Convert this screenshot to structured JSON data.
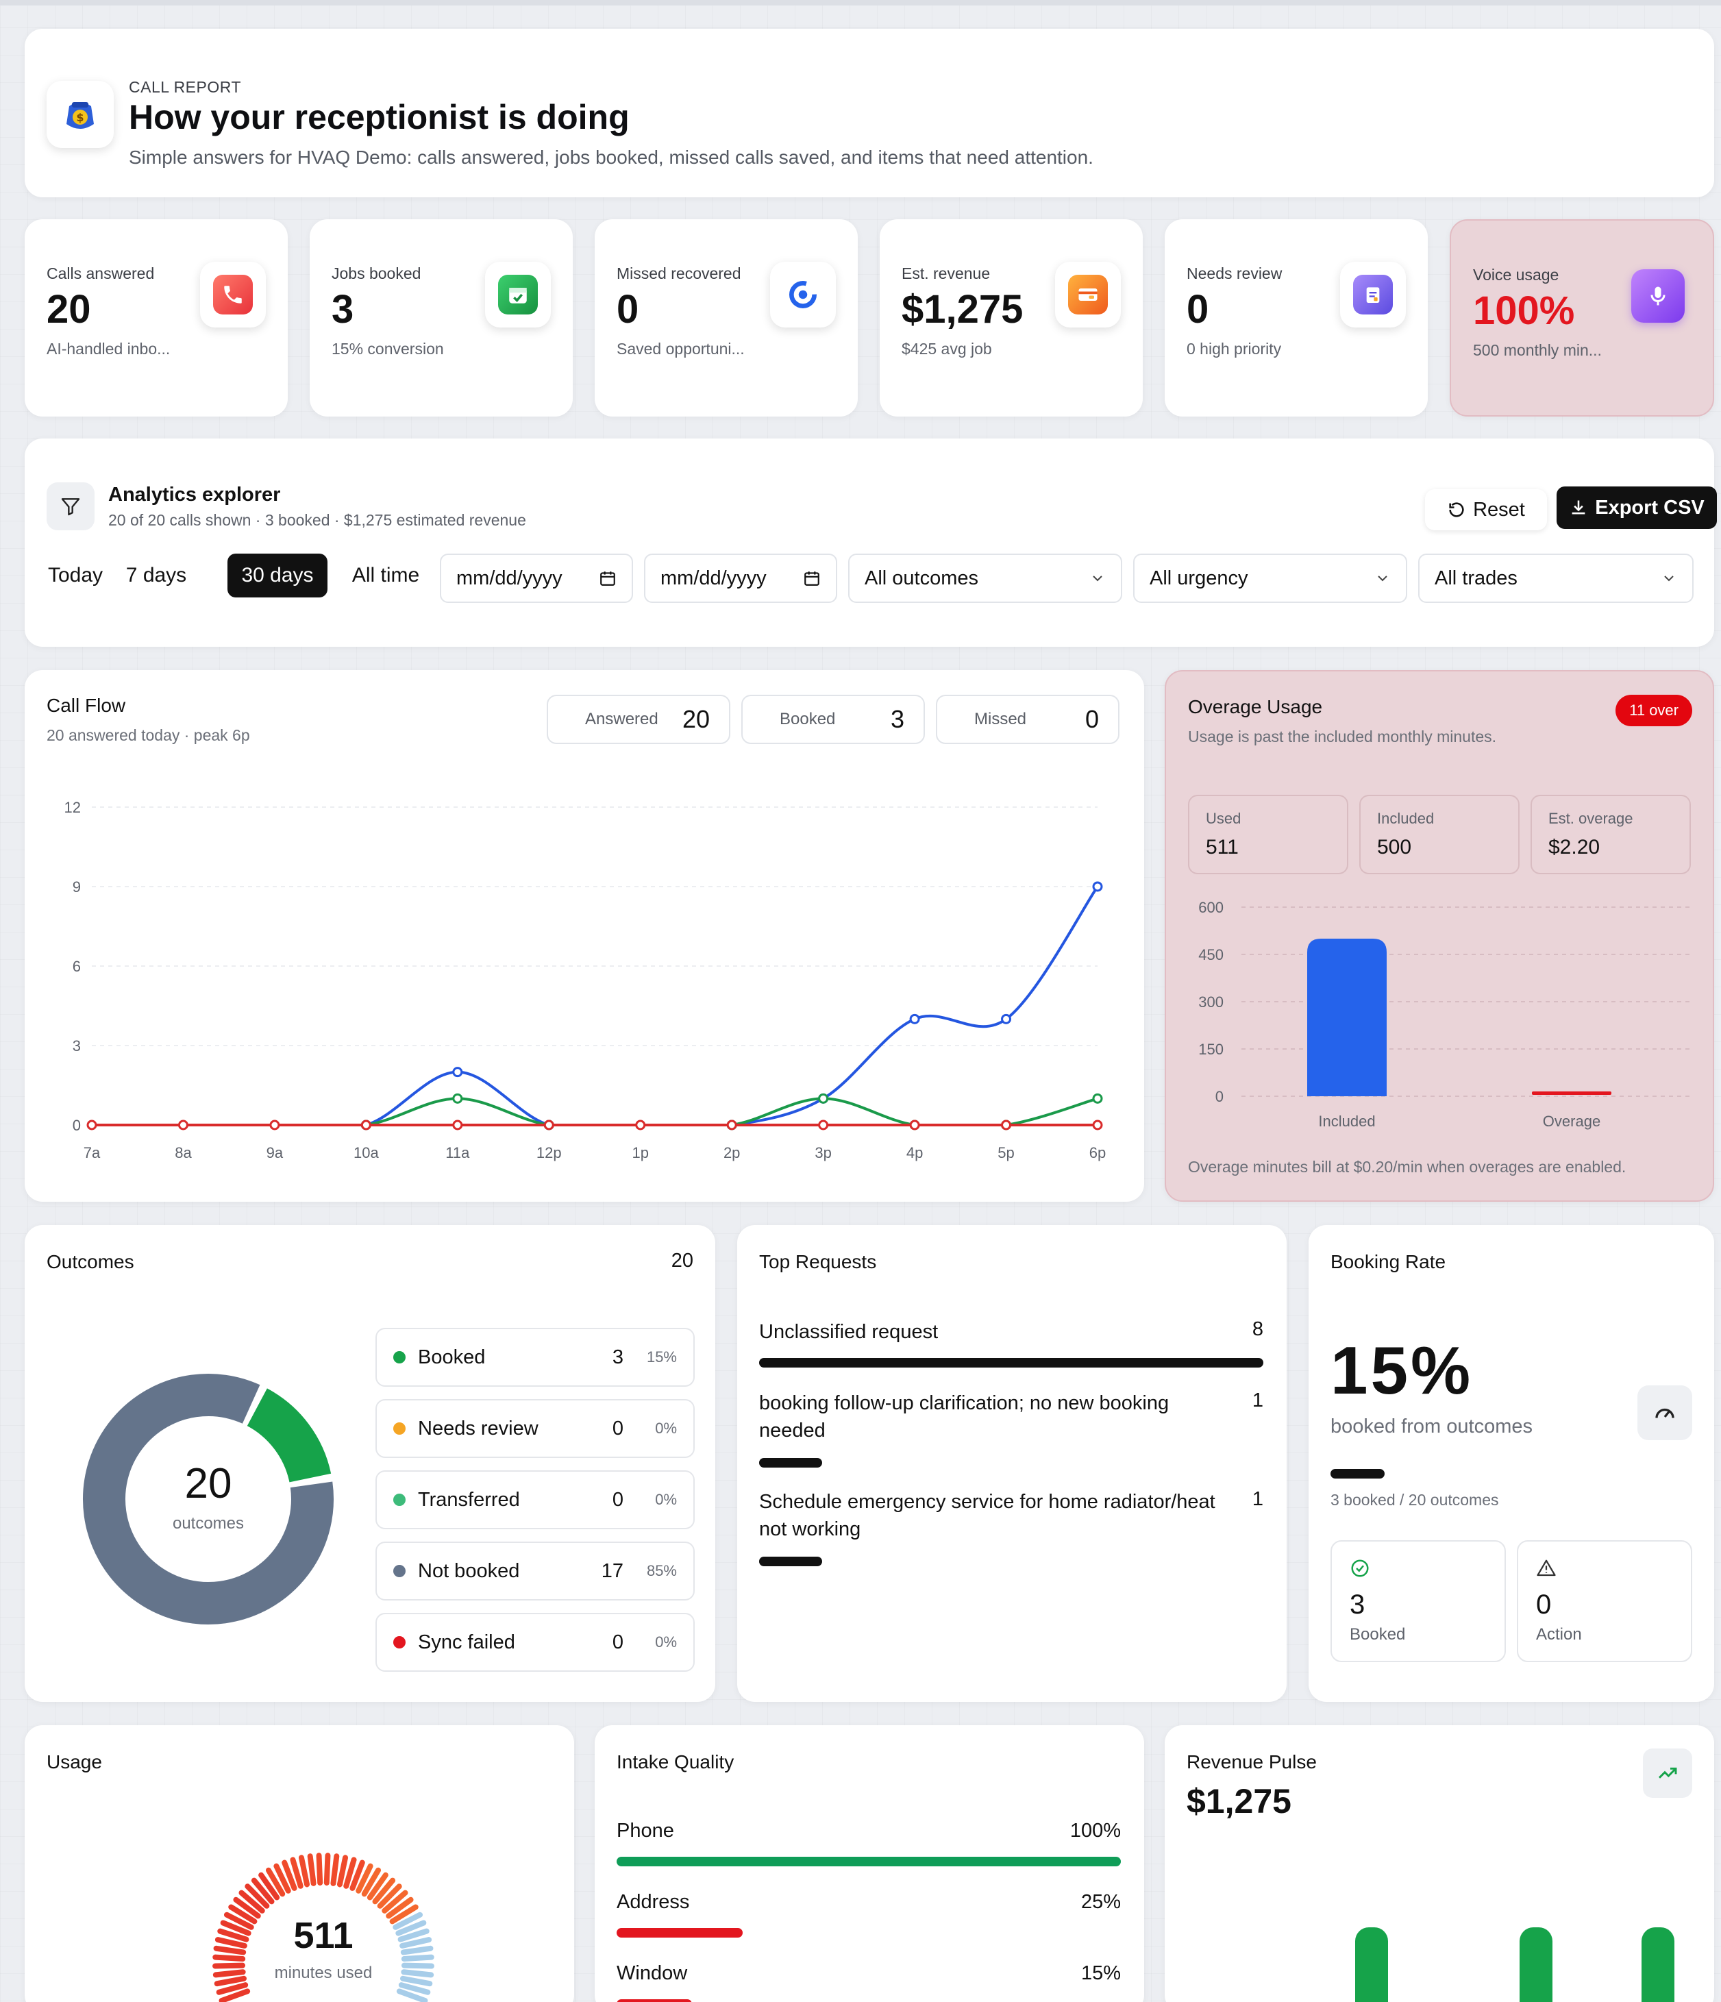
{
  "header": {
    "eyebrow": "CALL REPORT",
    "title": "How your receptionist is doing",
    "subtitle": "Simple answers for HVAQ Demo: calls answered, jobs booked, missed calls saved, and items that need attention."
  },
  "stats": [
    {
      "label": "Calls answered",
      "value": "20",
      "sub": "AI-handled inbo...",
      "icon": "phone-icon",
      "color": "#f0524f"
    },
    {
      "label": "Jobs booked",
      "value": "3",
      "sub": "15% conversion",
      "icon": "calendar-check-icon",
      "color": "#22a753"
    },
    {
      "label": "Missed recovered",
      "value": "0",
      "sub": "Saved opportuni...",
      "icon": "refresh-icon",
      "color": "#2563eb"
    },
    {
      "label": "Est. revenue",
      "value": "$1,275",
      "sub": "$425 avg job",
      "icon": "cash-icon",
      "color": "#f26a1b"
    },
    {
      "label": "Needs review",
      "value": "0",
      "sub": "0 high priority",
      "icon": "clipboard-icon",
      "color": "#6d5ae6"
    },
    {
      "label": "Voice usage",
      "value": "100%",
      "sub": "500 monthly min...",
      "icon": "microphone-icon",
      "color": "#8b5cf6"
    }
  ],
  "explorer": {
    "title": "Analytics explorer",
    "summary": "20 of 20 calls shown · 3 booked · $1,275 estimated revenue",
    "reset_label": "Reset",
    "export_label": "Export CSV",
    "ranges": [
      "Today",
      "7 days",
      "30 days",
      "All time"
    ],
    "active_range": "30 days",
    "date_from_placeholder": "mm/dd/yyyy",
    "date_to_placeholder": "mm/dd/yyyy",
    "outcome_select": "All outcomes",
    "urgency_select": "All urgency",
    "trade_select": "All trades"
  },
  "call_flow": {
    "title": "Call Flow",
    "subtitle": "20 answered today · peak 6p",
    "pills": [
      {
        "label": "Answered",
        "value": "20"
      },
      {
        "label": "Booked",
        "value": "3"
      },
      {
        "label": "Missed",
        "value": "0"
      }
    ]
  },
  "overage": {
    "title": "Overage Usage",
    "badge": "11 over",
    "subtitle": "Usage is past the included monthly minutes.",
    "boxes": [
      {
        "label": "Used",
        "value": "511"
      },
      {
        "label": "Included",
        "value": "500"
      },
      {
        "label": "Est. overage",
        "value": "$2.20"
      }
    ],
    "footnote": "Overage minutes bill at $0.20/min when overages are enabled."
  },
  "outcomes": {
    "title": "Outcomes",
    "total": "20",
    "center_value": "20",
    "center_label": "outcomes",
    "items": [
      {
        "name": "Booked",
        "count": "3",
        "pct": "15%",
        "color": "#16a34a"
      },
      {
        "name": "Needs review",
        "count": "0",
        "pct": "0%",
        "color": "#f5a524"
      },
      {
        "name": "Transferred",
        "count": "0",
        "pct": "0%",
        "color": "#3dbb7a"
      },
      {
        "name": "Not booked",
        "count": "17",
        "pct": "85%",
        "color": "#64748b"
      },
      {
        "name": "Sync failed",
        "count": "0",
        "pct": "0%",
        "color": "#e3161f"
      }
    ]
  },
  "top_requests": {
    "title": "Top Requests",
    "items": [
      {
        "text": "Unclassified request",
        "count": "8",
        "fraction": 1.0
      },
      {
        "text": "booking follow-up clarification; no new booking needed",
        "count": "1",
        "fraction": 0.125
      },
      {
        "text": "Schedule emergency service for home radiator/heat not working",
        "count": "1",
        "fraction": 0.125
      }
    ]
  },
  "booking_rate": {
    "title": "Booking Rate",
    "value": "15%",
    "label": "booked from outcomes",
    "detail": "3 booked / 20 outcomes",
    "fraction": 0.15,
    "booked_value": "3",
    "booked_label": "Booked",
    "action_value": "0",
    "action_label": "Action"
  },
  "usage": {
    "title": "Usage",
    "value": "511",
    "label": "minutes used"
  },
  "intake_quality": {
    "title": "Intake Quality",
    "items": [
      {
        "name": "Phone",
        "pct": "100%",
        "fraction": 1.0,
        "color": "#0f9d58"
      },
      {
        "name": "Address",
        "pct": "25%",
        "fraction": 0.25,
        "color": "#e3161f"
      },
      {
        "name": "Window",
        "pct": "15%",
        "fraction": 0.15,
        "color": "#e3161f"
      }
    ]
  },
  "revenue_pulse": {
    "title": "Revenue Pulse",
    "value": "$1,275"
  },
  "chart_data": [
    {
      "type": "line",
      "title": "Call Flow",
      "x": [
        "7a",
        "8a",
        "9a",
        "10a",
        "11a",
        "12p",
        "1p",
        "2p",
        "3p",
        "4p",
        "5p",
        "6p"
      ],
      "ylim": [
        0,
        12
      ],
      "yticks": [
        0,
        3,
        6,
        9,
        12
      ],
      "series": [
        {
          "name": "Answered",
          "color": "#2456e0",
          "values": [
            0,
            0,
            0,
            0,
            2,
            0,
            0,
            0,
            1,
            4,
            4,
            9
          ]
        },
        {
          "name": "Booked",
          "color": "#1a9a4a",
          "values": [
            0,
            0,
            0,
            0,
            1,
            0,
            0,
            0,
            1,
            0,
            0,
            1
          ]
        },
        {
          "name": "Missed",
          "color": "#d92b2b",
          "values": [
            0,
            0,
            0,
            0,
            0,
            0,
            0,
            0,
            0,
            0,
            0,
            0
          ]
        }
      ],
      "grid": true
    },
    {
      "type": "bar",
      "title": "Overage Usage",
      "categories": [
        "Included",
        "Overage"
      ],
      "values": [
        500,
        11
      ],
      "colors": [
        "#2563eb",
        "#e3161f"
      ],
      "ylim": [
        0,
        600
      ],
      "yticks": [
        0,
        150,
        300,
        450,
        600
      ]
    },
    {
      "type": "pie",
      "title": "Outcomes",
      "categories": [
        "Booked",
        "Not booked"
      ],
      "values": [
        3,
        17
      ],
      "colors": [
        "#16a34a",
        "#64748b"
      ]
    }
  ]
}
